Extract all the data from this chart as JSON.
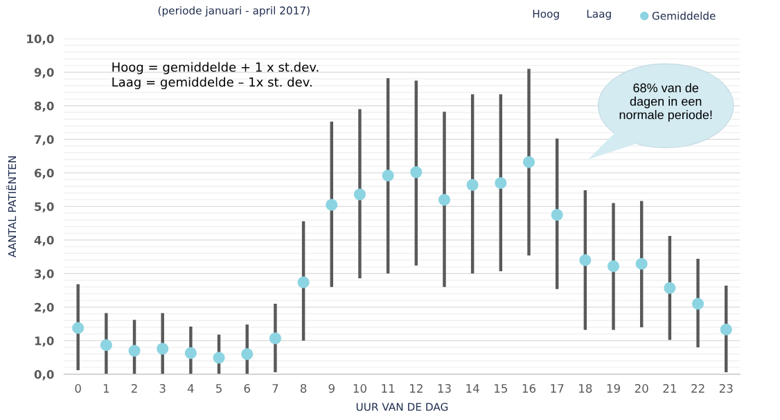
{
  "chart_data": {
    "type": "scatter",
    "subtitle": "(periode januari - april 2017)",
    "xlabel": "UUR VAN DE DAG",
    "ylabel": "AANTAL PATIËNTEN",
    "categories": [
      "0",
      "1",
      "2",
      "3",
      "4",
      "5",
      "6",
      "7",
      "8",
      "9",
      "10",
      "11",
      "12",
      "13",
      "14",
      "15",
      "16",
      "17",
      "18",
      "19",
      "20",
      "21",
      "22",
      "23"
    ],
    "series": [
      {
        "name": "Gemiddelde",
        "marker": "circle",
        "color": "#8dd4e2",
        "values": [
          1.38,
          0.87,
          0.7,
          0.76,
          0.63,
          0.49,
          0.6,
          1.07,
          2.74,
          5.05,
          5.36,
          5.92,
          6.02,
          5.2,
          5.64,
          5.7,
          6.32,
          4.75,
          3.4,
          3.22,
          3.29,
          2.57,
          2.1,
          1.33
        ],
        "errors": [
          [
            0.12,
            2.68
          ],
          [
            0,
            1.82
          ],
          [
            0,
            1.62
          ],
          [
            0,
            1.82
          ],
          [
            0,
            1.42
          ],
          [
            0,
            1.18
          ],
          [
            0,
            1.48
          ],
          [
            0.06,
            2.1
          ],
          [
            1.0,
            4.56
          ],
          [
            2.6,
            7.53
          ],
          [
            2.86,
            7.9
          ],
          [
            3.0,
            8.82
          ],
          [
            3.24,
            8.75
          ],
          [
            2.6,
            7.82
          ],
          [
            3.0,
            8.34
          ],
          [
            3.07,
            8.34
          ],
          [
            3.54,
            9.1
          ],
          [
            2.54,
            7.02
          ],
          [
            1.32,
            5.48
          ],
          [
            1.32,
            5.1
          ],
          [
            1.4,
            5.16
          ],
          [
            1.02,
            4.12
          ],
          [
            0.8,
            3.44
          ],
          [
            0.06,
            2.64
          ]
        ]
      }
    ],
    "ylim": [
      0,
      10
    ],
    "yticks": [
      {
        "value": 0,
        "label": "0,0"
      },
      {
        "value": 0.2,
        "label": null
      },
      {
        "value": 0.4,
        "label": null
      },
      {
        "value": 0.6,
        "label": null
      },
      {
        "value": 0.8,
        "label": null
      },
      {
        "value": 1,
        "label": "1,0"
      },
      {
        "value": 1.2,
        "label": null
      },
      {
        "value": 1.4,
        "label": null
      },
      {
        "value": 1.6,
        "label": null
      },
      {
        "value": 1.8,
        "label": null
      },
      {
        "value": 2,
        "label": "2,0"
      },
      {
        "value": 2.2,
        "label": null
      },
      {
        "value": 2.4,
        "label": null
      },
      {
        "value": 2.6,
        "label": null
      },
      {
        "value": 2.8,
        "label": null
      },
      {
        "value": 3,
        "label": "3,0"
      },
      {
        "value": 3.2,
        "label": null
      },
      {
        "value": 3.4,
        "label": null
      },
      {
        "value": 3.6,
        "label": null
      },
      {
        "value": 3.8,
        "label": null
      },
      {
        "value": 4,
        "label": "4,0"
      },
      {
        "value": 4.2,
        "label": null
      },
      {
        "value": 4.4,
        "label": null
      },
      {
        "value": 4.6,
        "label": null
      },
      {
        "value": 4.8,
        "label": null
      },
      {
        "value": 5,
        "label": "5,0"
      },
      {
        "value": 5.2,
        "label": null
      },
      {
        "value": 5.4,
        "label": null
      },
      {
        "value": 5.6,
        "label": null
      },
      {
        "value": 5.8,
        "label": null
      },
      {
        "value": 6,
        "label": "6,0"
      },
      {
        "value": 6.2,
        "label": null
      },
      {
        "value": 6.4,
        "label": null
      },
      {
        "value": 6.6,
        "label": null
      },
      {
        "value": 6.8,
        "label": null
      },
      {
        "value": 7,
        "label": "7,0"
      },
      {
        "value": 7.2,
        "label": null
      },
      {
        "value": 7.4,
        "label": null
      },
      {
        "value": 7.6,
        "label": null
      },
      {
        "value": 7.8,
        "label": null
      },
      {
        "value": 8,
        "label": "8,0"
      },
      {
        "value": 8.2,
        "label": null
      },
      {
        "value": 8.4,
        "label": null
      },
      {
        "value": 8.6,
        "label": null
      },
      {
        "value": 8.8,
        "label": null
      },
      {
        "value": 9,
        "label": "9,0"
      },
      {
        "value": 9.2,
        "label": null
      },
      {
        "value": 9.4,
        "label": null
      },
      {
        "value": 9.6,
        "label": null
      },
      {
        "value": 9.8,
        "label": null
      },
      {
        "value": 10,
        "label": "10,0"
      }
    ],
    "grid": "y",
    "legend": "top right",
    "annotations": [
      "Hoog",
      "Laag",
      "Hoog = gemiddelde + 1 x st.dev.\nLaag = gemiddelde – 1x st. dev.",
      "68% van de\ndagen in een\nnormale periode!"
    ]
  }
}
